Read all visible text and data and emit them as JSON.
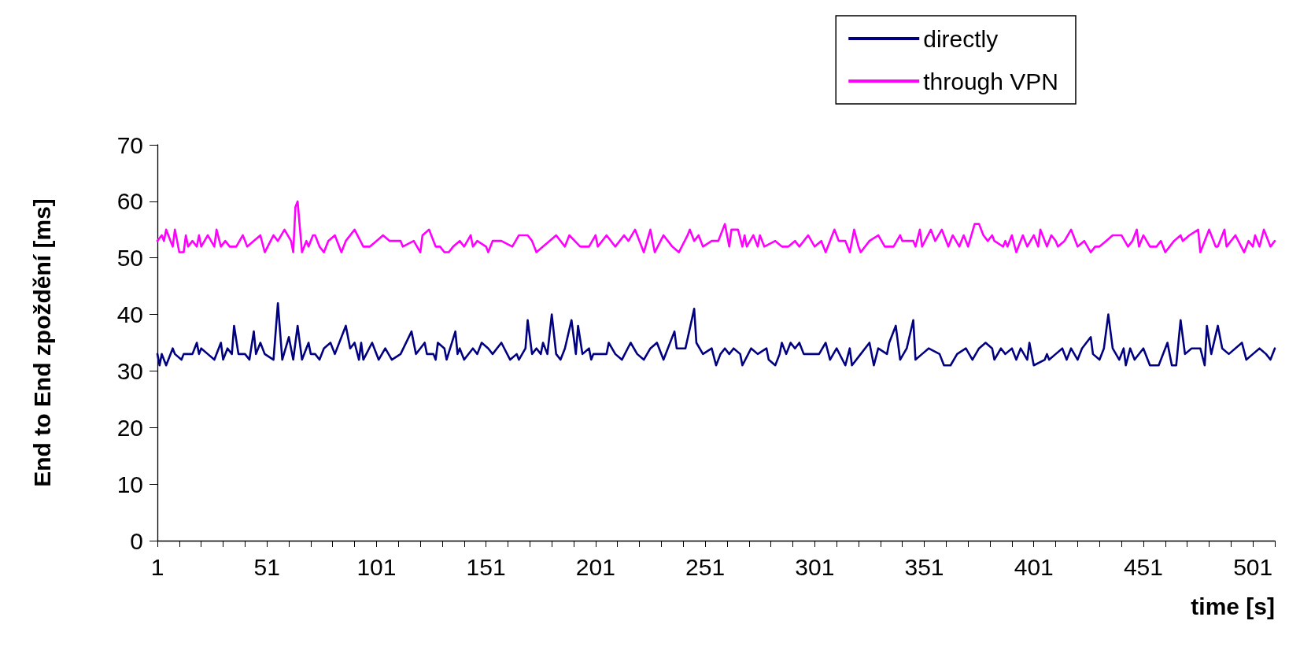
{
  "chart_data": {
    "type": "line",
    "xlabel": "time [s]",
    "ylabel": "End to End zpoždění [ms]",
    "xlim": [
      1,
      511
    ],
    "ylim": [
      0,
      70
    ],
    "xticks": [
      1,
      {
        "value": 11,
        "label": null
      },
      {
        "value": 21,
        "label": null
      },
      {
        "value": 31,
        "label": null
      },
      {
        "value": 41,
        "label": null
      },
      51,
      {
        "value": 61,
        "label": null
      },
      {
        "value": 71,
        "label": null
      },
      {
        "value": 81,
        "label": null
      },
      {
        "value": 91,
        "label": null
      },
      101,
      {
        "value": 111,
        "label": null
      },
      {
        "value": 121,
        "label": null
      },
      {
        "value": 131,
        "label": null
      },
      {
        "value": 141,
        "label": null
      },
      151,
      {
        "value": 161,
        "label": null
      },
      {
        "value": 171,
        "label": null
      },
      {
        "value": 181,
        "label": null
      },
      {
        "value": 191,
        "label": null
      },
      201,
      {
        "value": 211,
        "label": null
      },
      {
        "value": 221,
        "label": null
      },
      {
        "value": 231,
        "label": null
      },
      {
        "value": 241,
        "label": null
      },
      251,
      {
        "value": 261,
        "label": null
      },
      {
        "value": 271,
        "label": null
      },
      {
        "value": 281,
        "label": null
      },
      {
        "value": 291,
        "label": null
      },
      301,
      {
        "value": 311,
        "label": null
      },
      {
        "value": 321,
        "label": null
      },
      {
        "value": 331,
        "label": null
      },
      {
        "value": 341,
        "label": null
      },
      351,
      {
        "value": 361,
        "label": null
      },
      {
        "value": 371,
        "label": null
      },
      {
        "value": 381,
        "label": null
      },
      {
        "value": 391,
        "label": null
      },
      401,
      {
        "value": 411,
        "label": null
      },
      {
        "value": 421,
        "label": null
      },
      {
        "value": 431,
        "label": null
      },
      {
        "value": 441,
        "label": null
      },
      451,
      {
        "value": 461,
        "label": null
      },
      {
        "value": 471,
        "label": null
      },
      {
        "value": 481,
        "label": null
      },
      {
        "value": 491,
        "label": null
      },
      501,
      {
        "value": 511,
        "label": null
      }
    ],
    "yticks": [
      0,
      10,
      20,
      30,
      40,
      50,
      60,
      70
    ],
    "grid": false,
    "legend": "top right",
    "marker": "none",
    "line_style": "solid",
    "series": [
      {
        "name": "directly",
        "color": "#000080",
        "x": [
          1,
          2,
          3,
          4,
          5,
          8,
          9,
          12,
          13,
          17,
          19,
          20,
          21,
          24,
          27,
          30,
          31,
          33,
          35,
          36,
          38,
          41,
          43,
          45,
          46,
          48,
          50,
          54,
          56,
          58,
          61,
          63,
          65,
          67,
          70,
          71,
          73,
          75,
          77,
          80,
          82,
          87,
          89,
          91,
          93,
          94,
          95,
          99,
          102,
          105,
          108,
          112,
          117,
          119,
          121,
          123,
          124,
          127,
          128,
          129,
          132,
          133,
          137,
          138,
          139,
          141,
          145,
          147,
          149,
          152,
          154,
          158,
          162,
          165,
          166,
          169,
          170,
          172,
          174,
          176,
          177,
          179,
          181,
          183,
          185,
          187,
          190,
          192,
          193,
          195,
          198,
          199,
          200,
          206,
          207,
          210,
          213,
          217,
          220,
          223,
          226,
          229,
          232,
          237,
          238,
          242,
          246,
          247,
          250,
          254,
          256,
          258,
          260,
          262,
          264,
          267,
          268,
          272,
          275,
          279,
          280,
          283,
          285,
          286,
          288,
          290,
          292,
          294,
          296,
          303,
          306,
          308,
          311,
          315,
          317,
          318,
          322,
          326,
          328,
          330,
          334,
          335,
          338,
          340,
          343,
          346,
          347,
          350,
          353,
          358,
          360,
          363,
          366,
          370,
          373,
          376,
          379,
          382,
          383,
          386,
          388,
          391,
          393,
          395,
          398,
          399,
          401,
          406,
          407,
          408,
          411,
          414,
          416,
          418,
          421,
          423,
          427,
          428,
          431,
          433,
          435,
          437,
          440,
          442,
          443,
          445,
          447,
          451,
          454,
          458,
          462,
          464,
          466,
          468,
          470,
          473,
          477,
          479,
          480,
          482,
          485,
          487,
          490,
          496,
          498,
          501,
          504,
          507,
          509,
          511
        ],
        "values": [
          33,
          31,
          33,
          32,
          31,
          34,
          33,
          32,
          33,
          33,
          35,
          33,
          34,
          33,
          32,
          35,
          32,
          34,
          33,
          38,
          33,
          33,
          32,
          37,
          33,
          35,
          33,
          32,
          42,
          32,
          36,
          32,
          38,
          32,
          35,
          33,
          33,
          32,
          34,
          35,
          33,
          38,
          34,
          35,
          32,
          35,
          32,
          35,
          32,
          34,
          32,
          33,
          37,
          33,
          34,
          35,
          33,
          33,
          32,
          35,
          34,
          32,
          37,
          33,
          34,
          32,
          34,
          33,
          35,
          34,
          33,
          35,
          32,
          33,
          32,
          34,
          39,
          33,
          34,
          33,
          35,
          33,
          40,
          33,
          32,
          34,
          39,
          33,
          38,
          33,
          34,
          32,
          33,
          33,
          35,
          33,
          32,
          35,
          33,
          32,
          34,
          35,
          32,
          37,
          34,
          34,
          41,
          35,
          33,
          34,
          31,
          33,
          34,
          33,
          34,
          33,
          31,
          34,
          33,
          34,
          32,
          31,
          33,
          35,
          33,
          35,
          34,
          35,
          33,
          33,
          35,
          32,
          34,
          31,
          34,
          31,
          33,
          35,
          31,
          34,
          33,
          35,
          38,
          32,
          34,
          39,
          32,
          33,
          34,
          33,
          31,
          31,
          33,
          34,
          32,
          34,
          35,
          34,
          32,
          34,
          33,
          34,
          32,
          34,
          32,
          35,
          31,
          32,
          33,
          32,
          33,
          34,
          32,
          34,
          32,
          34,
          36,
          33,
          32,
          34,
          40,
          34,
          32,
          34,
          31,
          34,
          32,
          34,
          31,
          31,
          35,
          31,
          31,
          39,
          33,
          34,
          34,
          31,
          38,
          33,
          38,
          34,
          33,
          35,
          32,
          33,
          34,
          33,
          32,
          34
        ]
      },
      {
        "name": "through VPN",
        "color": "#ff00ff",
        "x": [
          1,
          3,
          4,
          5,
          6,
          8,
          9,
          11,
          13,
          14,
          15,
          17,
          19,
          20,
          21,
          24,
          27,
          28,
          30,
          32,
          34,
          37,
          40,
          42,
          48,
          50,
          54,
          56,
          59,
          62,
          63,
          64,
          65,
          67,
          69,
          70,
          72,
          73,
          75,
          77,
          79,
          82,
          85,
          87,
          91,
          95,
          98,
          101,
          104,
          107,
          112,
          113,
          118,
          121,
          122,
          125,
          128,
          130,
          132,
          134,
          136,
          139,
          141,
          144,
          145,
          147,
          151,
          152,
          154,
          158,
          163,
          166,
          170,
          172,
          174,
          177,
          180,
          183,
          187,
          189,
          194,
          198,
          201,
          202,
          206,
          210,
          214,
          216,
          219,
          223,
          226,
          228,
          232,
          236,
          239,
          243,
          244,
          246,
          248,
          250,
          254,
          257,
          260,
          262,
          263,
          266,
          268,
          269,
          270,
          273,
          275,
          276,
          278,
          283,
          286,
          289,
          292,
          294,
          298,
          301,
          304,
          306,
          310,
          312,
          315,
          317,
          319,
          321,
          322,
          326,
          330,
          333,
          337,
          340,
          341,
          346,
          347,
          349,
          350,
          354,
          356,
          359,
          362,
          364,
          367,
          369,
          371,
          374,
          376,
          378,
          380,
          382,
          383,
          387,
          388,
          389,
          391,
          393,
          396,
          398,
          401,
          403,
          404,
          407,
          409,
          411,
          412,
          415,
          418,
          421,
          424,
          427,
          429,
          431,
          434,
          437,
          441,
          444,
          446,
          448,
          449,
          451,
          454,
          457,
          459,
          461,
          465,
          468,
          469,
          472,
          476,
          477,
          479,
          481,
          484,
          485,
          488,
          489,
          493,
          497,
          499,
          501,
          502,
          504,
          506,
          509,
          511
        ],
        "values": [
          53,
          54,
          53,
          55,
          54,
          52,
          55,
          51,
          51,
          54,
          52,
          53,
          52,
          54,
          52,
          54,
          52,
          55,
          52,
          53,
          52,
          52,
          54,
          52,
          54,
          51,
          54,
          53,
          55,
          53,
          51,
          59,
          60,
          51,
          53,
          52,
          54,
          54,
          52,
          51,
          53,
          54,
          51,
          53,
          55,
          52,
          52,
          53,
          54,
          53,
          53,
          52,
          53,
          51,
          54,
          55,
          52,
          52,
          51,
          51,
          52,
          53,
          52,
          54,
          52,
          53,
          52,
          51,
          53,
          53,
          52,
          54,
          54,
          53,
          51,
          52,
          53,
          54,
          52,
          54,
          52,
          52,
          54,
          52,
          54,
          52,
          54,
          53,
          55,
          51,
          55,
          51,
          54,
          52,
          51,
          54,
          55,
          53,
          54,
          52,
          53,
          53,
          56,
          52,
          55,
          55,
          52,
          54,
          52,
          54,
          52,
          54,
          52,
          53,
          52,
          52,
          53,
          52,
          54,
          52,
          53,
          51,
          55,
          53,
          53,
          51,
          55,
          52,
          51,
          53,
          54,
          52,
          52,
          54,
          53,
          53,
          52,
          55,
          52,
          55,
          53,
          55,
          52,
          54,
          52,
          54,
          52,
          56,
          56,
          54,
          53,
          54,
          53,
          52,
          53,
          52,
          54,
          51,
          54,
          52,
          54,
          52,
          55,
          52,
          54,
          53,
          52,
          53,
          55,
          52,
          53,
          51,
          52,
          52,
          53,
          54,
          54,
          52,
          53,
          55,
          52,
          54,
          52,
          52,
          53,
          51,
          53,
          54,
          53,
          54,
          55,
          51,
          53,
          55,
          52,
          52,
          55,
          52,
          54,
          51,
          53,
          52,
          54,
          52,
          55,
          52,
          53
        ]
      }
    ]
  }
}
